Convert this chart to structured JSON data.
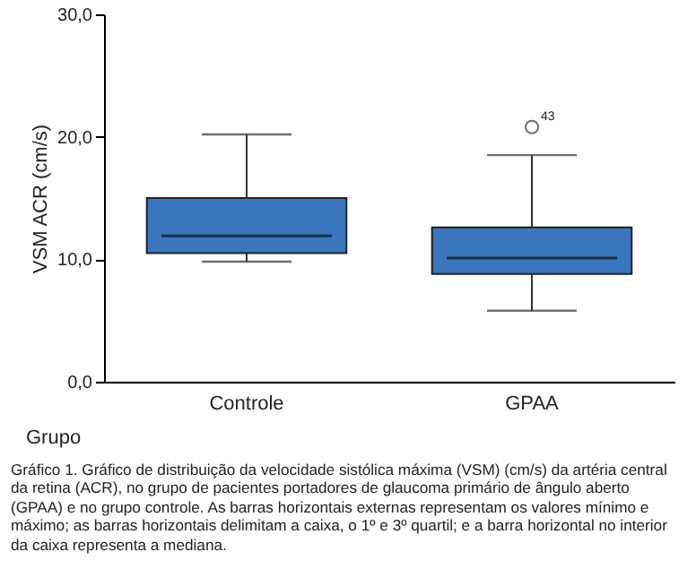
{
  "chart_data": {
    "type": "box",
    "xlabel": "Grupo",
    "ylabel": "VSM ACR (cm/s)",
    "categories": [
      "Controle",
      "GPAA"
    ],
    "color": "#3a76bd",
    "boxes": [
      {
        "low": 9.8,
        "q1": 10.5,
        "median": 11.9,
        "q3": 15.0,
        "high": 20.2
      },
      {
        "low": 5.8,
        "q1": 8.8,
        "median": 10.1,
        "q3": 12.6,
        "high": 18.5,
        "outliers": [
          20.8
        ]
      }
    ],
    "ylim": [
      0,
      30
    ],
    "yticks": [
      {
        "value": 0,
        "label": "0,0"
      },
      {
        "value": 10,
        "label": "10,0"
      },
      {
        "value": 20,
        "label": "20,0"
      },
      {
        "value": 30,
        "label": "30,0"
      }
    ],
    "annotations": [
      "43",
      "Gráfico 1. Gráfico de distribuição da velocidade sistólica máxima (VSM) (cm/s) da artéria central da retina (ACR), no grupo de pacientes portadores de glaucoma primário de ângulo aberto (GPAA) e no grupo controle. As barras horizontais externas representam os valores mínimo e máximo; as barras horizontais delimitam a caixa, o 1º e 3º quartil; e a barra horizontal no interior da caixa representa a mediana."
    ]
  }
}
